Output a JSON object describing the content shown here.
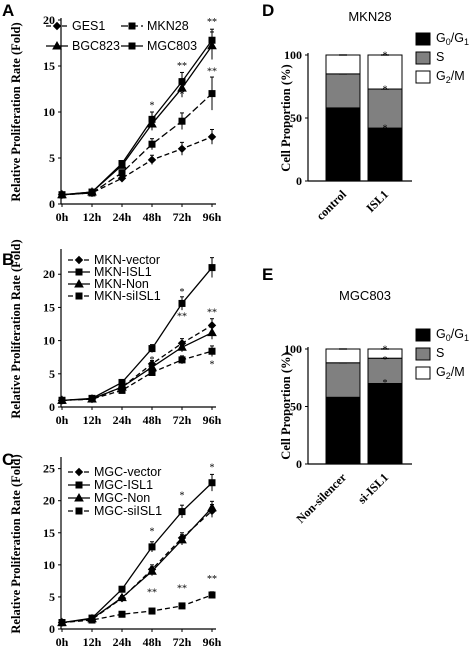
{
  "chart_data": [
    {
      "panel": "A",
      "type": "line",
      "ylabel": "Relative Proliferation Rate (Fold)",
      "categories": [
        "0h",
        "12h",
        "24h",
        "48h",
        "72h",
        "96h"
      ],
      "yticks": [
        0,
        5,
        10,
        15,
        20
      ],
      "ylim": [
        0,
        20
      ],
      "series": [
        {
          "name": "GES1",
          "values": [
            1,
            1.2,
            2.8,
            4.8,
            6,
            7.3
          ],
          "errors": [
            0.1,
            0.1,
            0.3,
            0.5,
            0.7,
            0.8
          ],
          "marker": "diamond",
          "dash": "5,3"
        },
        {
          "name": "MKN28",
          "values": [
            1,
            1.2,
            3.4,
            6.5,
            9,
            12
          ],
          "errors": [
            0.1,
            0.1,
            0.3,
            0.6,
            0.9,
            1.8
          ],
          "marker": "square",
          "dash": "7,3"
        },
        {
          "name": "BGC823",
          "values": [
            1,
            1.3,
            4.2,
            8.7,
            12.6,
            17.2
          ],
          "errors": [
            0.1,
            0.1,
            0.3,
            0.7,
            1,
            1.5
          ],
          "marker": "triangle",
          "dash": ""
        },
        {
          "name": "MGC803",
          "values": [
            1,
            1.3,
            4.4,
            9.2,
            13.3,
            17.8
          ],
          "errors": [
            0.1,
            0.1,
            0.3,
            0.8,
            1,
            1.2
          ],
          "marker": "square",
          "dash": ""
        }
      ],
      "annotations": [
        {
          "text": "*",
          "x": 3,
          "y": 10.7
        },
        {
          "text": "**",
          "x": 4,
          "y": 15
        },
        {
          "text": "*",
          "x": 4,
          "y": 11.9
        },
        {
          "text": "**",
          "x": 5,
          "y": 19.8
        },
        {
          "text": "**",
          "x": 5,
          "y": 14.4
        }
      ]
    },
    {
      "panel": "B",
      "type": "line",
      "ylabel": "Relative Proliferation Rate (Fold)",
      "categories": [
        "0h",
        "12h",
        "24h",
        "48h",
        "72h",
        "96h"
      ],
      "yticks": [
        0,
        5,
        10,
        15,
        20
      ],
      "ylim": [
        0,
        23.5
      ],
      "series": [
        {
          "name": "MKN-vector",
          "values": [
            1,
            1.2,
            3,
            6.5,
            9.6,
            12.3
          ],
          "errors": [
            0.1,
            0.1,
            0.3,
            0.5,
            0.7,
            1
          ],
          "marker": "diamond",
          "dash": "5,3"
        },
        {
          "name": "MKN-ISL1",
          "values": [
            1,
            1.3,
            3.7,
            8.8,
            15.6,
            21
          ],
          "errors": [
            0.1,
            0.1,
            0.3,
            0.6,
            1,
            1.5
          ],
          "marker": "square",
          "dash": ""
        },
        {
          "name": "MKN-Non",
          "values": [
            1,
            1.2,
            3,
            6,
            9,
            11.2
          ],
          "errors": [
            0.1,
            0.1,
            0.3,
            0.5,
            0.7,
            1
          ],
          "marker": "triangle",
          "dash": ""
        },
        {
          "name": "MKN-siISL1",
          "values": [
            1,
            1.2,
            2.5,
            5.2,
            7.1,
            8.4
          ],
          "errors": [
            0.1,
            0.1,
            0.3,
            0.4,
            0.6,
            0.8
          ],
          "marker": "square",
          "dash": "5,3"
        }
      ],
      "annotations": [
        {
          "text": "*",
          "x": 3,
          "y": 7.1
        },
        {
          "text": "*",
          "x": 4,
          "y": 17.3
        },
        {
          "text": "**",
          "x": 4,
          "y": 13.6
        },
        {
          "text": "**",
          "x": 5,
          "y": 14.2
        },
        {
          "text": "*",
          "x": 5,
          "y": 6.4
        }
      ]
    },
    {
      "panel": "C",
      "type": "line",
      "ylabel": "Relative Proliferation Rate (Fold)",
      "categories": [
        "0h",
        "12h",
        "24h",
        "48h",
        "72h",
        "96h"
      ],
      "yticks": [
        0,
        5,
        10,
        15,
        20,
        25
      ],
      "ylim": [
        0,
        26.5
      ],
      "series": [
        {
          "name": "MGC-vector",
          "values": [
            1,
            1.5,
            4.8,
            9.3,
            14.2,
            18.4
          ],
          "errors": [
            0.1,
            0.1,
            0.3,
            0.7,
            0.8,
            1
          ],
          "marker": "diamond",
          "dash": "5,3"
        },
        {
          "name": "MGC-ISL1",
          "values": [
            1,
            1.7,
            6.2,
            12.8,
            18.3,
            22.8
          ],
          "errors": [
            0.1,
            0.1,
            0.4,
            0.8,
            1,
            1.3
          ],
          "marker": "square",
          "dash": ""
        },
        {
          "name": "MGC-Non",
          "values": [
            1,
            1.6,
            4.9,
            9,
            13.9,
            18.9
          ],
          "errors": [
            0.1,
            0.1,
            0.3,
            0.7,
            0.8,
            1
          ],
          "marker": "triangle",
          "dash": ""
        },
        {
          "name": "MGC-siISL1",
          "values": [
            1,
            1.4,
            2.3,
            2.8,
            3.6,
            5.3
          ],
          "errors": [
            0.1,
            0.1,
            0.2,
            0.3,
            0.4,
            0.5
          ],
          "marker": "square",
          "dash": "5,3"
        }
      ],
      "annotations": [
        {
          "text": "*",
          "x": 3,
          "y": 15.2
        },
        {
          "text": "**",
          "x": 3,
          "y": 5.7
        },
        {
          "text": "*",
          "x": 4,
          "y": 20.8
        },
        {
          "text": "**",
          "x": 4,
          "y": 6.3
        },
        {
          "text": "*",
          "x": 5,
          "y": 25.2
        },
        {
          "text": "**",
          "x": 5,
          "y": 7.8
        }
      ]
    },
    {
      "panel": "D",
      "type": "bar",
      "title": "MKN28",
      "ylabel": "Cell Proportion (%)",
      "categories": [
        "control",
        "ISL1"
      ],
      "yticks": [
        0,
        50,
        100
      ],
      "ylim": [
        0,
        100
      ],
      "stacked": true,
      "series": [
        {
          "name": "G0/G1",
          "values": [
            58,
            42
          ],
          "color": "#000000"
        },
        {
          "name": "S",
          "values": [
            27,
            31
          ],
          "color": "#808080"
        },
        {
          "name": "G2/M",
          "values": [
            15,
            27
          ],
          "color": "#ffffff"
        }
      ],
      "annotations": [
        {
          "text": "*",
          "x": 1,
          "y": 102
        },
        {
          "text": "*",
          "x": 1,
          "y": 75
        },
        {
          "text": "*",
          "x": 1,
          "y": 44
        }
      ]
    },
    {
      "panel": "E",
      "type": "bar",
      "title": "MGC803",
      "ylabel": "Cell Proportion (%)",
      "categories": [
        "Non-silencer",
        "si-ISL1"
      ],
      "yticks": [
        0,
        50,
        100
      ],
      "ylim": [
        0,
        100
      ],
      "stacked": true,
      "series": [
        {
          "name": "G0/G1",
          "values": [
            58,
            70
          ],
          "color": "#000000"
        },
        {
          "name": "S",
          "values": [
            30,
            22
          ],
          "color": "#808080"
        },
        {
          "name": "G2/M",
          "values": [
            12,
            8
          ],
          "color": "#ffffff"
        }
      ],
      "annotations": [
        {
          "text": "*",
          "x": 1,
          "y": 102
        },
        {
          "text": "*",
          "x": 1,
          "y": 93
        },
        {
          "text": "*",
          "x": 1,
          "y": 73
        }
      ]
    }
  ]
}
